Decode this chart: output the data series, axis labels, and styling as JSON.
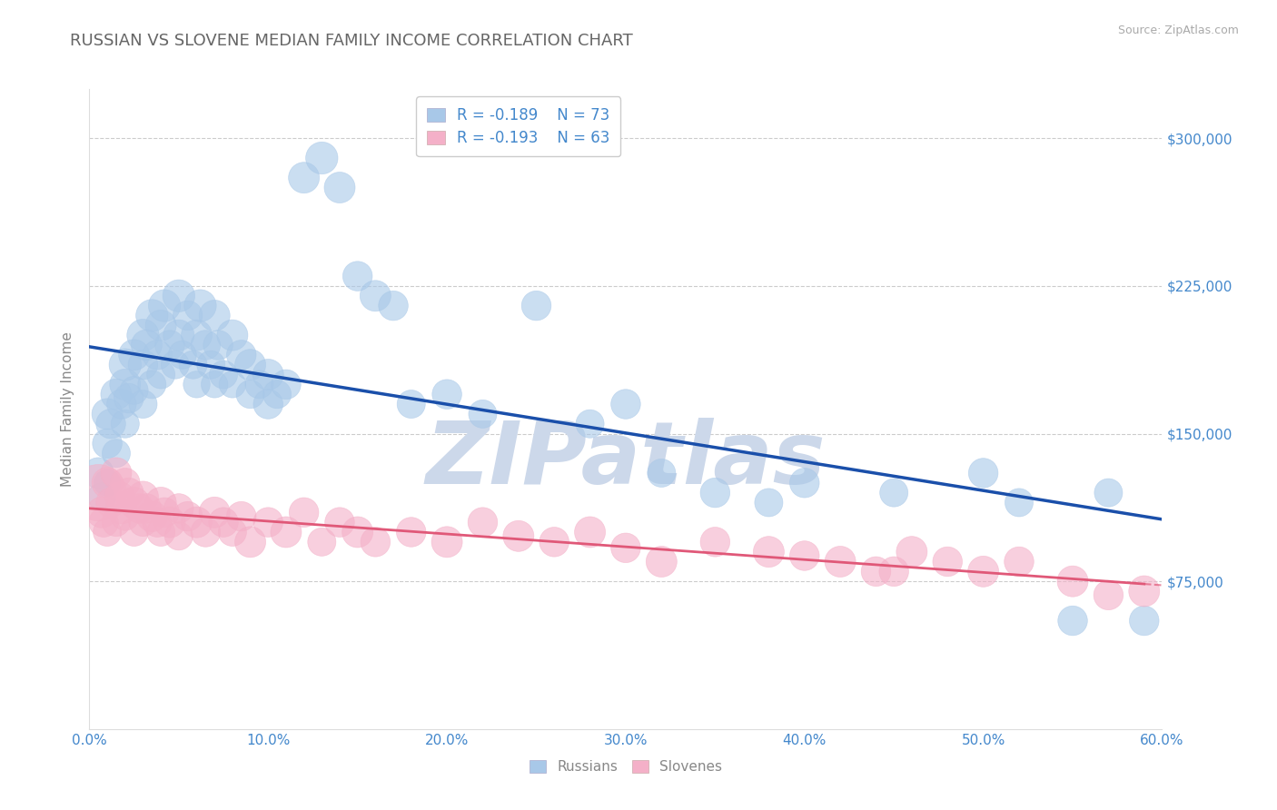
{
  "title": "RUSSIAN VS SLOVENE MEDIAN FAMILY INCOME CORRELATION CHART",
  "source": "Source: ZipAtlas.com",
  "ylabel": "Median Family Income",
  "xlim": [
    0.0,
    0.6
  ],
  "ylim": [
    0,
    325000
  ],
  "yticks": [
    75000,
    150000,
    225000,
    300000
  ],
  "ytick_labels": [
    "$75,000",
    "$150,000",
    "$225,000",
    "$300,000"
  ],
  "xticks": [
    0.0,
    0.1,
    0.2,
    0.3,
    0.4,
    0.5,
    0.6
  ],
  "xtick_labels": [
    "0.0%",
    "10.0%",
    "20.0%",
    "30.0%",
    "40.0%",
    "50.0%",
    "60.0%"
  ],
  "grid_color": "#cccccc",
  "background_color": "#ffffff",
  "watermark": "ZIPatlas",
  "watermark_color": "#ccd8ea",
  "legend_R1": "R = -0.189",
  "legend_N1": "N = 73",
  "legend_R2": "R = -0.193",
  "legend_N2": "N = 63",
  "russian_color": "#a8c8e8",
  "slovene_color": "#f4b0c8",
  "russian_line_color": "#1a4faa",
  "slovene_line_color": "#e05878",
  "axis_color": "#4488cc",
  "title_color": "#666666",
  "russians_x": [
    0.005,
    0.007,
    0.01,
    0.01,
    0.01,
    0.012,
    0.015,
    0.015,
    0.018,
    0.02,
    0.02,
    0.02,
    0.022,
    0.025,
    0.025,
    0.03,
    0.03,
    0.03,
    0.032,
    0.035,
    0.035,
    0.038,
    0.04,
    0.04,
    0.042,
    0.045,
    0.048,
    0.05,
    0.05,
    0.052,
    0.055,
    0.058,
    0.06,
    0.06,
    0.062,
    0.065,
    0.068,
    0.07,
    0.07,
    0.072,
    0.075,
    0.08,
    0.08,
    0.085,
    0.09,
    0.09,
    0.095,
    0.1,
    0.1,
    0.105,
    0.11,
    0.12,
    0.13,
    0.14,
    0.15,
    0.16,
    0.17,
    0.18,
    0.2,
    0.22,
    0.25,
    0.28,
    0.3,
    0.32,
    0.35,
    0.38,
    0.4,
    0.45,
    0.5,
    0.52,
    0.55,
    0.57,
    0.59
  ],
  "russians_y": [
    130000,
    118000,
    145000,
    160000,
    125000,
    155000,
    170000,
    140000,
    165000,
    175000,
    155000,
    185000,
    168000,
    190000,
    172000,
    200000,
    185000,
    165000,
    195000,
    210000,
    175000,
    190000,
    205000,
    180000,
    215000,
    195000,
    185000,
    200000,
    220000,
    190000,
    210000,
    185000,
    200000,
    175000,
    215000,
    195000,
    185000,
    210000,
    175000,
    195000,
    180000,
    200000,
    175000,
    190000,
    170000,
    185000,
    175000,
    165000,
    180000,
    170000,
    175000,
    280000,
    290000,
    275000,
    230000,
    220000,
    215000,
    165000,
    170000,
    160000,
    215000,
    155000,
    165000,
    130000,
    120000,
    115000,
    125000,
    120000,
    130000,
    115000,
    55000,
    120000,
    55000
  ],
  "russians_sizes": [
    60,
    50,
    55,
    60,
    45,
    55,
    60,
    50,
    55,
    60,
    50,
    65,
    55,
    60,
    50,
    65,
    55,
    50,
    60,
    65,
    50,
    55,
    60,
    50,
    65,
    55,
    50,
    60,
    65,
    50,
    55,
    50,
    60,
    45,
    65,
    55,
    50,
    60,
    45,
    55,
    50,
    60,
    45,
    55,
    50,
    60,
    50,
    55,
    60,
    50,
    55,
    60,
    65,
    60,
    55,
    60,
    55,
    50,
    55,
    50,
    55,
    50,
    55,
    50,
    55,
    50,
    55,
    50,
    55,
    50,
    55,
    50,
    55
  ],
  "slovenes_x": [
    0.005,
    0.007,
    0.008,
    0.01,
    0.01,
    0.012,
    0.015,
    0.015,
    0.017,
    0.018,
    0.02,
    0.02,
    0.022,
    0.025,
    0.025,
    0.028,
    0.03,
    0.03,
    0.032,
    0.035,
    0.038,
    0.04,
    0.04,
    0.042,
    0.045,
    0.05,
    0.05,
    0.055,
    0.06,
    0.065,
    0.07,
    0.075,
    0.08,
    0.085,
    0.09,
    0.1,
    0.11,
    0.12,
    0.13,
    0.14,
    0.15,
    0.16,
    0.18,
    0.2,
    0.22,
    0.24,
    0.26,
    0.28,
    0.3,
    0.32,
    0.35,
    0.38,
    0.4,
    0.42,
    0.44,
    0.46,
    0.48,
    0.5,
    0.52,
    0.55,
    0.57,
    0.59,
    0.45
  ],
  "slovenes_y": [
    120000,
    110000,
    105000,
    125000,
    100000,
    115000,
    130000,
    105000,
    118000,
    112000,
    125000,
    108000,
    120000,
    115000,
    100000,
    112000,
    118000,
    105000,
    112000,
    108000,
    105000,
    115000,
    100000,
    110000,
    105000,
    112000,
    98000,
    108000,
    105000,
    100000,
    110000,
    105000,
    100000,
    108000,
    95000,
    105000,
    100000,
    110000,
    95000,
    105000,
    100000,
    95000,
    100000,
    95000,
    105000,
    98000,
    95000,
    100000,
    92000,
    85000,
    95000,
    90000,
    88000,
    85000,
    80000,
    90000,
    85000,
    80000,
    85000,
    75000,
    68000,
    70000,
    80000
  ],
  "slovenes_sizes": [
    200,
    60,
    55,
    60,
    50,
    55,
    60,
    50,
    55,
    60,
    55,
    50,
    55,
    60,
    50,
    55,
    60,
    50,
    55,
    60,
    55,
    60,
    50,
    55,
    60,
    55,
    50,
    55,
    60,
    55,
    60,
    55,
    50,
    55,
    60,
    55,
    60,
    55,
    50,
    55,
    60,
    55,
    55,
    60,
    55,
    60,
    55,
    60,
    55,
    60,
    55,
    60,
    55,
    60,
    55,
    60,
    55,
    60,
    55,
    60,
    55,
    60,
    55
  ]
}
